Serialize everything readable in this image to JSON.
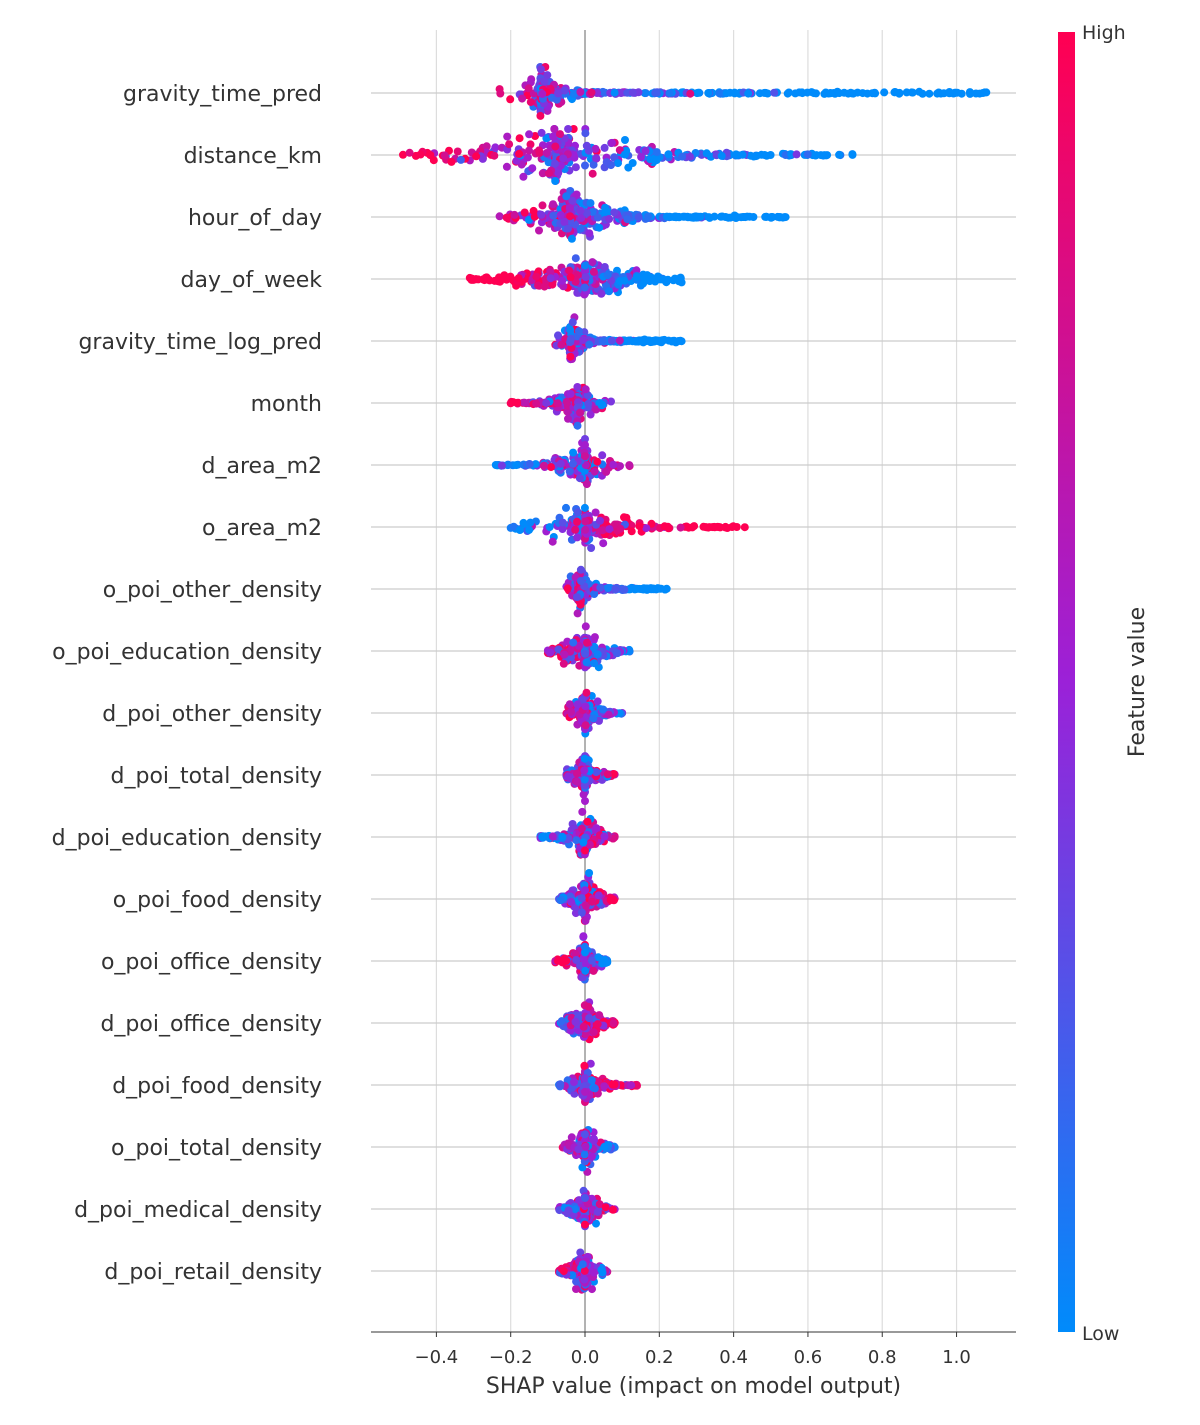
{
  "chart_data": {
    "type": "scatter",
    "subtype": "shap-beeswarm",
    "xlabel": "SHAP value (impact on model output)",
    "xlim": [
      -0.576,
      1.16
    ],
    "xticks": [
      -0.4,
      -0.2,
      0.0,
      0.2,
      0.4,
      0.6,
      0.8,
      1.0
    ],
    "xtick_labels": [
      "−0.4",
      "−0.2",
      "0.0",
      "0.2",
      "0.4",
      "0.6",
      "0.8",
      "1.0"
    ],
    "grid": true,
    "colorbar": {
      "label": "Feature value",
      "high_label": "High",
      "low_label": "Low",
      "high_color": "#ff0052",
      "mid_color": "#9b21d8",
      "low_color": "#008bfb"
    },
    "features": [
      {
        "name": "gravity_time_pred",
        "min": -0.23,
        "max": 1.08,
        "peak": -0.12,
        "corr": -1
      },
      {
        "name": "distance_km",
        "min": -0.49,
        "max": 0.72,
        "peak": -0.08,
        "corr": -0.6
      },
      {
        "name": "hour_of_day",
        "min": -0.23,
        "max": 0.54,
        "peak": -0.04,
        "corr": -1
      },
      {
        "name": "day_of_week",
        "min": -0.31,
        "max": 0.26,
        "peak": 0.0,
        "corr": -0.8
      },
      {
        "name": "gravity_time_log_pred",
        "min": -0.08,
        "max": 0.26,
        "peak": -0.04,
        "corr": -0.8
      },
      {
        "name": "month",
        "min": -0.2,
        "max": 0.07,
        "peak": -0.02,
        "corr": -0.3
      },
      {
        "name": "d_area_m2",
        "min": -0.24,
        "max": 0.12,
        "peak": 0.0,
        "corr": 0.3
      },
      {
        "name": "o_area_m2",
        "min": -0.2,
        "max": 0.43,
        "peak": 0.0,
        "corr": 0.9
      },
      {
        "name": "o_poi_other_density",
        "min": -0.05,
        "max": 0.22,
        "peak": -0.02,
        "corr": -0.7
      },
      {
        "name": "o_poi_education_density",
        "min": -0.1,
        "max": 0.12,
        "peak": 0.0,
        "corr": -0.3
      },
      {
        "name": "d_poi_other_density",
        "min": -0.05,
        "max": 0.1,
        "peak": 0.0,
        "corr": -0.3
      },
      {
        "name": "d_poi_total_density",
        "min": -0.05,
        "max": 0.08,
        "peak": 0.0,
        "corr": 0.1
      },
      {
        "name": "d_poi_education_density",
        "min": -0.12,
        "max": 0.08,
        "peak": 0.0,
        "corr": 0.3
      },
      {
        "name": "o_poi_food_density",
        "min": -0.07,
        "max": 0.08,
        "peak": 0.0,
        "corr": 0.3
      },
      {
        "name": "o_poi_office_density",
        "min": -0.08,
        "max": 0.06,
        "peak": 0.0,
        "corr": -0.4
      },
      {
        "name": "d_poi_office_density",
        "min": -0.07,
        "max": 0.08,
        "peak": 0.0,
        "corr": 0.3
      },
      {
        "name": "d_poi_food_density",
        "min": -0.07,
        "max": 0.14,
        "peak": 0.0,
        "corr": 0.4
      },
      {
        "name": "o_poi_total_density",
        "min": -0.06,
        "max": 0.08,
        "peak": 0.0,
        "corr": -0.2
      },
      {
        "name": "d_poi_medical_density",
        "min": -0.07,
        "max": 0.08,
        "peak": 0.0,
        "corr": 0.2
      },
      {
        "name": "d_poi_retail_density",
        "min": -0.07,
        "max": 0.06,
        "peak": 0.0,
        "corr": -0.2
      }
    ]
  }
}
